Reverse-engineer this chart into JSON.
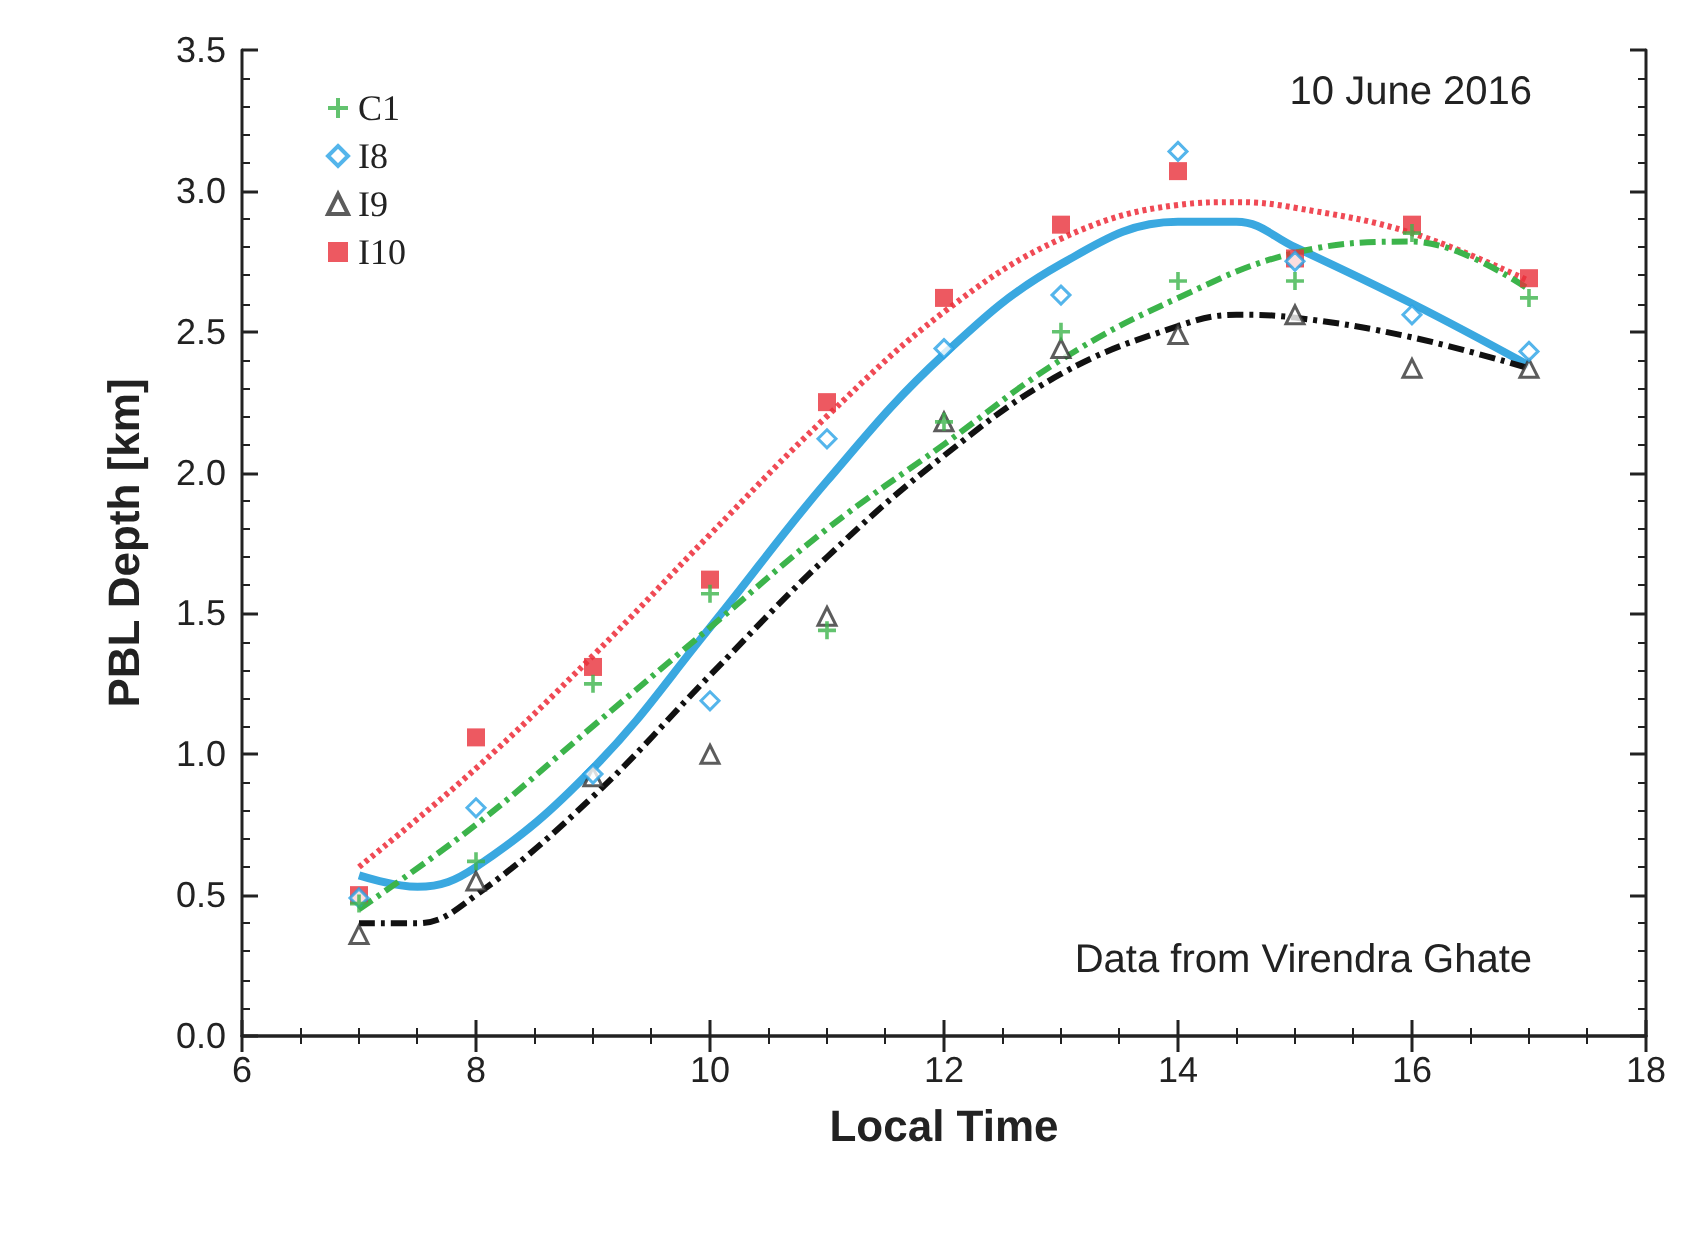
{
  "chart_data": {
    "type": "scatter",
    "xlabel": "Local Time",
    "ylabel": "PBL Depth [km]",
    "xlim": [
      6,
      18
    ],
    "xticks": [
      6,
      8,
      10,
      12,
      14,
      16,
      18
    ],
    "ylim": [
      0,
      3.5
    ],
    "yticks": [
      {
        "value": 0,
        "label": "0.0"
      },
      {
        "value": 0.5,
        "label": "0.5"
      },
      {
        "value": 1,
        "label": "1.0"
      },
      {
        "value": 1.5,
        "label": "1.5"
      },
      {
        "value": 2,
        "label": "2.0"
      },
      {
        "value": 2.5,
        "label": "2.5"
      },
      {
        "value": 3,
        "label": "3.0"
      },
      {
        "value": 3.5,
        "label": "3.5"
      }
    ],
    "x": [
      7,
      8,
      9,
      10,
      11,
      12,
      13,
      14,
      15,
      16,
      17
    ],
    "grid": false,
    "legend": "top left",
    "annotations": [
      "10 June 2016",
      "Data from Virendra Ghate"
    ],
    "series": [
      {
        "name": "C1",
        "color": "#3cb44b",
        "marker": "cross",
        "values": [
          0.47,
          0.62,
          1.25,
          1.57,
          1.44,
          2.18,
          2.5,
          2.68,
          2.68,
          2.85,
          2.62
        ]
      },
      {
        "name": "I8",
        "color": "#29a3e6",
        "marker": "diamond",
        "values": [
          0.49,
          0.81,
          0.93,
          1.19,
          2.12,
          2.44,
          2.63,
          3.14,
          2.75,
          2.56,
          2.43
        ]
      },
      {
        "name": "I9",
        "color": "#333333",
        "marker": "triangle",
        "values": [
          0.36,
          0.55,
          0.92,
          1.0,
          1.49,
          2.18,
          2.44,
          2.49,
          2.56,
          2.37,
          2.37
        ]
      },
      {
        "name": "I10",
        "color": "#e8303a",
        "marker": "square",
        "values": [
          0.5,
          1.06,
          1.31,
          1.62,
          2.25,
          2.62,
          2.88,
          3.07,
          2.76,
          2.88,
          2.69
        ]
      },
      {
        "type": "line",
        "color": "#f04a55",
        "line_style": "dotted",
        "x": [
          7,
          8,
          9,
          10,
          11,
          12,
          13,
          14,
          14.5,
          15,
          16,
          17
        ],
        "values": [
          0.6,
          0.95,
          1.35,
          1.78,
          2.2,
          2.57,
          2.83,
          2.95,
          2.96,
          2.94,
          2.85,
          2.68
        ]
      },
      {
        "type": "line",
        "color": "#3aa8e0",
        "line_style": "solid",
        "x": [
          7,
          7.5,
          8,
          9,
          10,
          11,
          12,
          13,
          14,
          14.5,
          15,
          16,
          17
        ],
        "values": [
          0.57,
          0.53,
          0.6,
          0.95,
          1.45,
          1.97,
          2.42,
          2.74,
          2.89,
          2.89,
          2.8,
          2.6,
          2.38
        ]
      },
      {
        "type": "line",
        "color": "#3cb44b",
        "line_style": "dashdot",
        "x": [
          7,
          8,
          9,
          10,
          11,
          12,
          13,
          14,
          15,
          16,
          17
        ],
        "values": [
          0.45,
          0.75,
          1.1,
          1.45,
          1.8,
          2.1,
          2.4,
          2.62,
          2.78,
          2.82,
          2.65
        ]
      },
      {
        "type": "line",
        "color": "#111111",
        "line_style": "dashdot",
        "x": [
          7,
          7.5,
          8,
          9,
          10,
          11,
          12,
          13,
          14,
          14.5,
          15,
          16,
          17
        ],
        "values": [
          0.4,
          0.4,
          0.5,
          0.85,
          1.28,
          1.7,
          2.06,
          2.35,
          2.52,
          2.56,
          2.55,
          2.48,
          2.37
        ]
      }
    ]
  }
}
